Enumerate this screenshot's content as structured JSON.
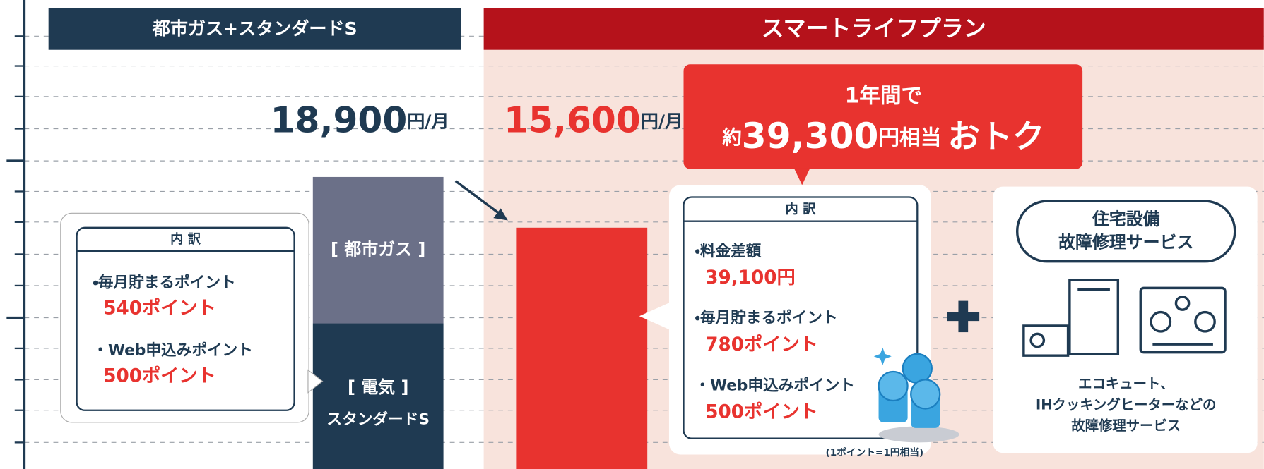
{
  "left_plan": {
    "title": "都市ガス+スタンダードS",
    "price": "18,900",
    "unit": "円/月",
    "bar": {
      "top": "[ 都市ガス ]",
      "bottom": [
        "[ 電気 ]",
        "スタンダードS"
      ]
    },
    "breakdown": {
      "heading": "内 訳",
      "items": [
        {
          "label": "・毎月貯まるポイント",
          "value": "540ポイント"
        },
        {
          "label": "・Web申込みポイント",
          "value": "500ポイント"
        }
      ]
    }
  },
  "right_plan": {
    "title": "スマートライフプラン",
    "price": "15,600",
    "unit": "円/月",
    "breakdown": {
      "heading": "内 訳",
      "items": [
        {
          "label": "・料金差額",
          "value": "39,100円"
        },
        {
          "label": "・毎月貯まるポイント",
          "value": "780ポイント"
        },
        {
          "label": "・Web申込みポイント",
          "value": "500ポイント"
        }
      ]
    },
    "note": "(1ポイント=1円相当)"
  },
  "callout": {
    "line1": "1年間で",
    "prefix": "約",
    "amount": "39,300",
    "suffix": "円相当",
    "emphasis": "おトク"
  },
  "service": {
    "title": [
      "住宅設備",
      "故障修理サービス"
    ],
    "description": [
      "エコキュート、",
      "IHクッキングヒーターなどの",
      "故障修理サービス"
    ]
  }
}
